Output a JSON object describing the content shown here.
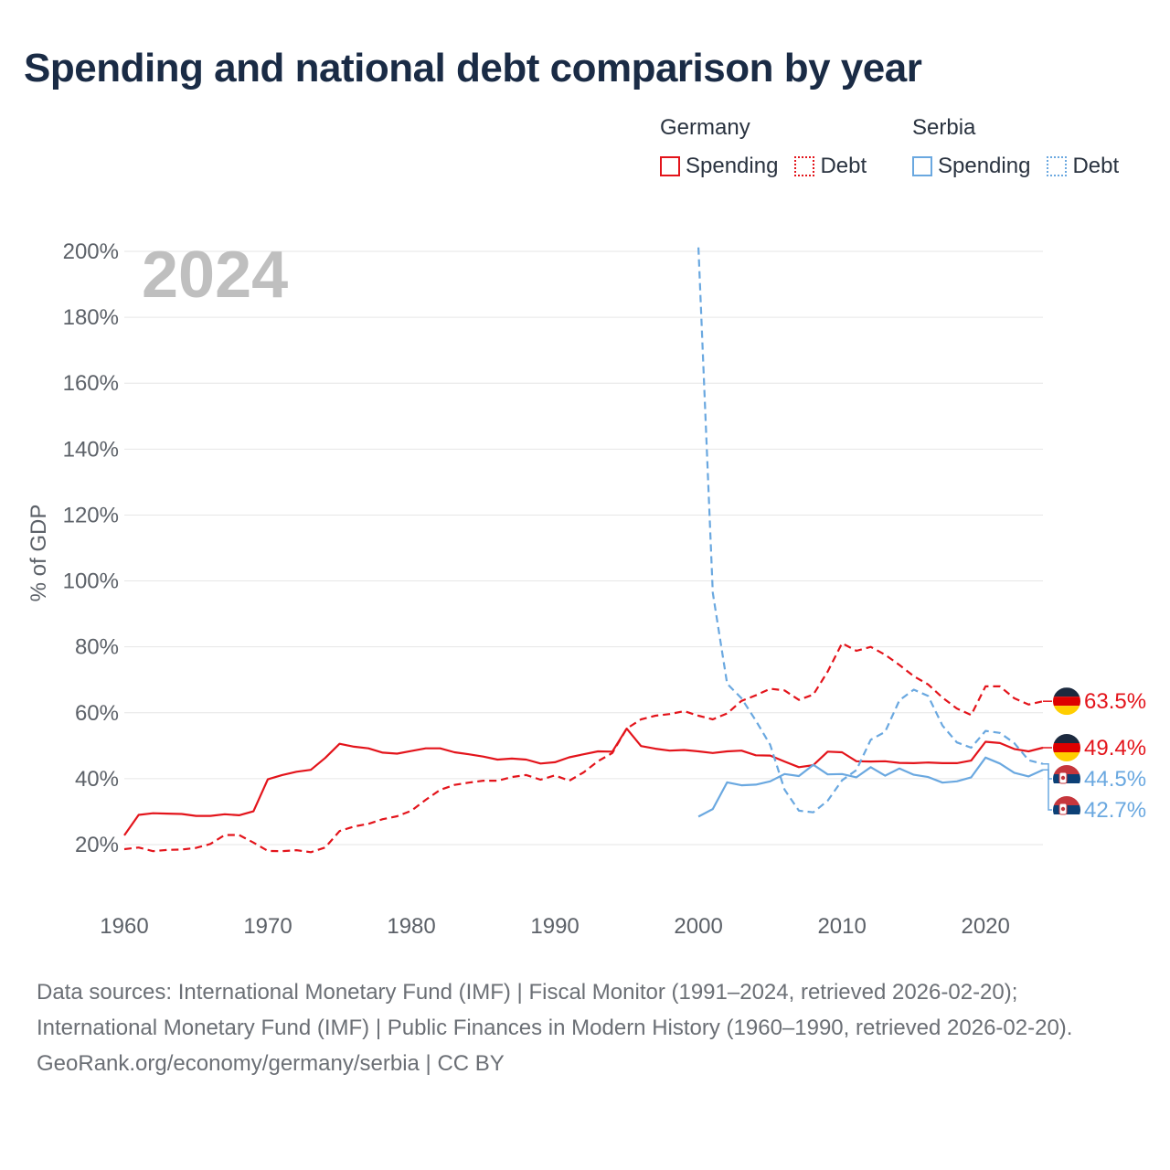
{
  "title": "Spending and national debt comparison by year",
  "legend": {
    "groups": [
      {
        "name": "Germany",
        "color": "#e3141b",
        "items": [
          {
            "label": "Spending",
            "style": "solid"
          },
          {
            "label": "Debt",
            "style": "dotted"
          }
        ]
      },
      {
        "name": "Serbia",
        "color": "#6aa8e0",
        "items": [
          {
            "label": "Spending",
            "style": "solid"
          },
          {
            "label": "Debt",
            "style": "dotted"
          }
        ]
      }
    ]
  },
  "chart_data": {
    "type": "line",
    "title": "Spending and national debt comparison by year",
    "ylabel": "% of GDP",
    "xlabel": "",
    "year_label": "2024",
    "xlim": [
      1960,
      2024
    ],
    "ylim": [
      10,
      200
    ],
    "x_ticks": [
      1960,
      1970,
      1980,
      1990,
      2000,
      2010,
      2020
    ],
    "y_ticks": [
      20,
      40,
      60,
      80,
      100,
      120,
      140,
      160,
      180,
      200
    ],
    "y_tick_labels": [
      "20%",
      "40%",
      "60%",
      "80%",
      "100%",
      "120%",
      "140%",
      "160%",
      "180%",
      "200%"
    ],
    "series": [
      {
        "name": "Germany Spending",
        "country": "Germany",
        "color": "#e3141b",
        "dash": "solid",
        "end_label": "49.4%",
        "x": [
          1960,
          1961,
          1962,
          1963,
          1964,
          1965,
          1966,
          1967,
          1968,
          1969,
          1970,
          1971,
          1972,
          1973,
          1974,
          1975,
          1976,
          1977,
          1978,
          1979,
          1980,
          1981,
          1982,
          1983,
          1984,
          1985,
          1986,
          1987,
          1988,
          1989,
          1990,
          1991,
          1992,
          1993,
          1994,
          1995,
          1996,
          1997,
          1998,
          1999,
          2000,
          2001,
          2002,
          2003,
          2004,
          2005,
          2006,
          2007,
          2008,
          2009,
          2010,
          2011,
          2012,
          2013,
          2014,
          2015,
          2016,
          2017,
          2018,
          2019,
          2020,
          2021,
          2022,
          2023,
          2024
        ],
        "values": [
          22.8,
          29.0,
          29.5,
          29.4,
          29.3,
          28.7,
          28.7,
          29.2,
          28.9,
          30.1,
          39.8,
          41.1,
          42.1,
          42.7,
          46.3,
          50.6,
          49.7,
          49.2,
          47.9,
          47.6,
          48.4,
          49.2,
          49.2,
          48.0,
          47.4,
          46.7,
          45.8,
          46.1,
          45.8,
          44.6,
          45.0,
          46.5,
          47.4,
          48.3,
          48.2,
          55.2,
          49.9,
          49.1,
          48.5,
          48.7,
          48.3,
          47.8,
          48.3,
          48.5,
          47.1,
          47.0,
          45.2,
          43.5,
          44.1,
          48.2,
          48.0,
          45.3,
          45.2,
          45.3,
          44.8,
          44.7,
          44.9,
          44.7,
          44.7,
          45.5,
          51.2,
          50.8,
          49.0,
          48.3,
          49.4
        ]
      },
      {
        "name": "Germany Debt",
        "country": "Germany",
        "color": "#e3141b",
        "dash": "dashed",
        "end_label": "63.5%",
        "x": [
          1960,
          1961,
          1962,
          1963,
          1964,
          1965,
          1966,
          1967,
          1968,
          1969,
          1970,
          1971,
          1972,
          1973,
          1974,
          1975,
          1976,
          1977,
          1978,
          1979,
          1980,
          1981,
          1982,
          1983,
          1984,
          1985,
          1986,
          1987,
          1988,
          1989,
          1990,
          1991,
          1992,
          1993,
          1994,
          1995,
          1996,
          1997,
          1998,
          1999,
          2000,
          2001,
          2002,
          2003,
          2004,
          2005,
          2006,
          2007,
          2008,
          2009,
          2010,
          2011,
          2012,
          2013,
          2014,
          2015,
          2016,
          2017,
          2018,
          2019,
          2020,
          2021,
          2022,
          2023,
          2024
        ],
        "values": [
          18.6,
          19.1,
          18.0,
          18.4,
          18.5,
          19.0,
          20.2,
          22.9,
          22.9,
          20.6,
          18.1,
          18.0,
          18.3,
          17.7,
          19.1,
          24.1,
          25.5,
          26.3,
          27.7,
          28.6,
          30.3,
          33.6,
          36.6,
          38.1,
          38.8,
          39.4,
          39.4,
          40.5,
          41.1,
          39.7,
          41.0,
          39.4,
          41.9,
          45.3,
          47.8,
          55.2,
          58.0,
          59.1,
          59.6,
          60.5,
          59.1,
          58.0,
          59.8,
          63.6,
          65.3,
          67.3,
          66.8,
          63.9,
          65.5,
          72.5,
          81.1,
          78.8,
          80.0,
          77.6,
          74.5,
          71.1,
          68.6,
          64.6,
          61.3,
          59.3,
          68.0,
          68.0,
          64.4,
          62.5,
          63.5
        ]
      },
      {
        "name": "Serbia Spending",
        "country": "Serbia",
        "color": "#6aa8e0",
        "dash": "solid",
        "end_label": "42.7%",
        "x": [
          2000,
          2001,
          2002,
          2003,
          2004,
          2005,
          2006,
          2007,
          2008,
          2009,
          2010,
          2011,
          2012,
          2013,
          2014,
          2015,
          2016,
          2017,
          2018,
          2019,
          2020,
          2021,
          2022,
          2023,
          2024
        ],
        "values": [
          28.5,
          30.8,
          38.9,
          38.0,
          38.2,
          39.2,
          41.4,
          40.8,
          44.2,
          41.3,
          41.4,
          40.4,
          43.5,
          40.9,
          43.1,
          41.2,
          40.5,
          38.8,
          39.2,
          40.4,
          46.4,
          44.6,
          41.8,
          40.7,
          42.7
        ]
      },
      {
        "name": "Serbia Debt",
        "country": "Serbia",
        "color": "#6aa8e0",
        "dash": "dashed",
        "end_label": "44.5%",
        "x": [
          2000,
          2001,
          2002,
          2003,
          2004,
          2005,
          2006,
          2007,
          2008,
          2009,
          2010,
          2011,
          2012,
          2013,
          2014,
          2015,
          2016,
          2017,
          2018,
          2019,
          2020,
          2021,
          2022,
          2023,
          2024
        ],
        "values": [
          201.2,
          96.4,
          68.8,
          64.4,
          57.6,
          50.3,
          36.7,
          30.3,
          29.8,
          33.3,
          39.5,
          42.6,
          51.8,
          54.2,
          63.8,
          67.0,
          65.1,
          56.1,
          51.0,
          49.4,
          54.5,
          53.9,
          50.8,
          45.6,
          44.5
        ]
      }
    ]
  },
  "footer": {
    "sources": "Data sources: International Monetary Fund (IMF) | Fiscal Monitor (1991–2024, retrieved 2026-02-20); International Monetary Fund (IMF) | Public Finances in Modern History (1960–1990, retrieved 2026-02-20).",
    "credit": "GeoRank.org/economy/germany/serbia | CC BY"
  }
}
